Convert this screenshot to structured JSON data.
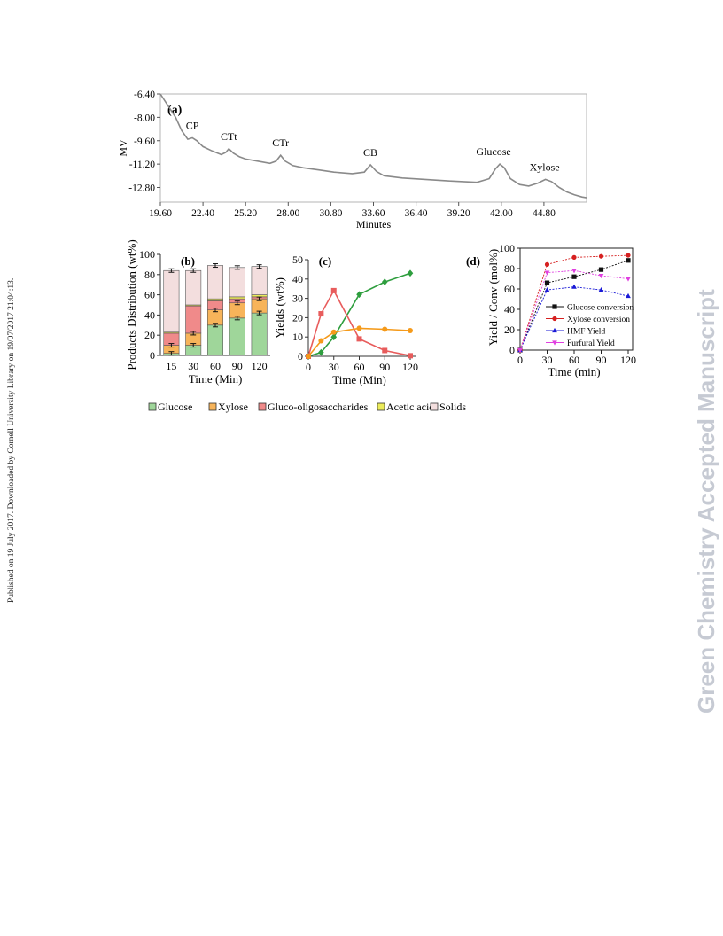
{
  "page": {
    "watermark": "Green Chemistry Accepted Manuscript",
    "sidebar_note": "Published on 19 July 2017. Downloaded by Cornell University Library on 19/07/2017 21:04:13."
  },
  "legend_b": {
    "items": [
      {
        "label": "Glucose",
        "color": "#9fd69a"
      },
      {
        "label": "Xylose",
        "color": "#f7b45a"
      },
      {
        "label": "Gluco-oligosaccharides",
        "color": "#f08a8a"
      },
      {
        "label": "Acetic acid",
        "color": "#ecec5a"
      },
      {
        "label": "Solids",
        "color": "#f3dede"
      }
    ]
  },
  "chart_data": [
    {
      "panel": "(a)",
      "type": "line",
      "xlabel": "Minutes",
      "ylabel": "MV",
      "xlim": [
        19.6,
        47.6
      ],
      "ylim": [
        -13.8,
        -6.4
      ],
      "xticks": [
        "19.60",
        "22.40",
        "25.20",
        "28.00",
        "30.80",
        "33.60",
        "36.40",
        "39.20",
        "42.00",
        "44.80"
      ],
      "yticks": [
        "-6.40",
        "-8.00",
        "-9.60",
        "-11.20",
        "-12.80"
      ],
      "peaks": [
        {
          "label": "CP",
          "x": 21.7
        },
        {
          "label": "CTt",
          "x": 24.1
        },
        {
          "label": "CTr",
          "x": 27.5
        },
        {
          "label": "CB",
          "x": 33.4
        },
        {
          "label": "Glucose",
          "x": 41.9
        },
        {
          "label": "Xylose",
          "x": 44.9
        }
      ],
      "x": [
        19.6,
        20.1,
        20.6,
        21.0,
        21.4,
        21.7,
        22.0,
        22.4,
        23.0,
        23.6,
        23.9,
        24.1,
        24.4,
        24.8,
        25.2,
        26.0,
        26.8,
        27.2,
        27.5,
        27.8,
        28.3,
        29.0,
        30.0,
        31.0,
        32.2,
        33.0,
        33.4,
        33.8,
        34.3,
        35.5,
        37.0,
        38.5,
        39.5,
        40.4,
        41.2,
        41.6,
        41.9,
        42.2,
        42.6,
        43.2,
        43.8,
        44.4,
        44.9,
        45.3,
        45.8,
        46.3,
        46.8,
        47.3,
        47.6
      ],
      "y": [
        -6.4,
        -7.2,
        -8.0,
        -8.9,
        -9.5,
        -9.4,
        -9.6,
        -10.0,
        -10.3,
        -10.55,
        -10.4,
        -10.15,
        -10.45,
        -10.7,
        -10.85,
        -11.0,
        -11.15,
        -11.0,
        -10.6,
        -11.0,
        -11.3,
        -11.45,
        -11.6,
        -11.75,
        -11.85,
        -11.75,
        -11.25,
        -11.7,
        -12.0,
        -12.15,
        -12.25,
        -12.35,
        -12.4,
        -12.45,
        -12.2,
        -11.55,
        -11.2,
        -11.45,
        -12.2,
        -12.6,
        -12.7,
        -12.5,
        -12.25,
        -12.4,
        -12.8,
        -13.1,
        -13.3,
        -13.45,
        -13.5
      ],
      "color": "#8a8a8a"
    },
    {
      "panel": "(b)",
      "type": "bar",
      "stacked": true,
      "xlabel": "Time (Min)",
      "ylabel": "Products Distribution (wt%)",
      "ylim": [
        0,
        100
      ],
      "yticks": [
        0,
        20,
        40,
        60,
        80,
        100
      ],
      "categories": [
        "15",
        "30",
        "60",
        "90",
        "120"
      ],
      "series": [
        {
          "name": "Glucose",
          "values": [
            2,
            10,
            30,
            37,
            42
          ],
          "color": "#9fd69a"
        },
        {
          "name": "Xylose",
          "values": [
            8,
            12,
            15,
            15,
            14
          ],
          "color": "#f7b45a"
        },
        {
          "name": "Gluco-oligosaccharides",
          "values": [
            12,
            27,
            9,
            4,
            2
          ],
          "color": "#f08a8a"
        },
        {
          "name": "Acetic acid",
          "values": [
            1,
            1,
            2,
            2,
            2
          ],
          "color": "#ecec5a"
        },
        {
          "name": "Solids",
          "values": [
            61,
            34,
            33,
            29,
            28
          ],
          "color": "#f3dede"
        }
      ]
    },
    {
      "panel": "(c)",
      "type": "line",
      "xlabel": "Time (Min)",
      "ylabel": "Yields (wt%)",
      "xlim": [
        0,
        120
      ],
      "ylim": [
        0,
        50
      ],
      "xticks": [
        0,
        30,
        60,
        90,
        120
      ],
      "yticks": [
        0,
        10,
        20,
        30,
        40,
        50
      ],
      "series": [
        {
          "name": "Glucose",
          "x": [
            0,
            15,
            30,
            60,
            90,
            120
          ],
          "y": [
            0,
            2,
            10,
            32,
            38.5,
            43
          ],
          "color": "#2e9e3e",
          "marker": "diamond"
        },
        {
          "name": "Gluco-oligosaccharides",
          "x": [
            0,
            15,
            30,
            60,
            90,
            120
          ],
          "y": [
            0,
            22,
            34,
            9,
            3,
            0.3
          ],
          "color": "#e85c5c",
          "marker": "square"
        },
        {
          "name": "Xylose",
          "x": [
            0,
            15,
            30,
            60,
            90,
            120
          ],
          "y": [
            0,
            8,
            12.5,
            14.5,
            14,
            13.3
          ],
          "color": "#f59a1a",
          "marker": "circle"
        }
      ]
    },
    {
      "panel": "(d)",
      "type": "line",
      "xlabel": "Time (min)",
      "ylabel": "Yield / Conv (mol%)",
      "xlim": [
        0,
        120
      ],
      "ylim": [
        0,
        100
      ],
      "xticks": [
        0,
        30,
        60,
        90,
        120
      ],
      "yticks": [
        0,
        20,
        40,
        60,
        80,
        100
      ],
      "series": [
        {
          "name": "Glucose conversion",
          "x": [
            0,
            30,
            60,
            90,
            120
          ],
          "y": [
            0,
            66,
            72,
            79,
            88
          ],
          "color": "#111111",
          "marker": "square"
        },
        {
          "name": "Xylose conversion",
          "x": [
            0,
            30,
            60,
            90,
            120
          ],
          "y": [
            0,
            84,
            91,
            92,
            93
          ],
          "color": "#d62020",
          "marker": "circle"
        },
        {
          "name": "HMF Yield",
          "x": [
            0,
            30,
            60,
            90,
            120
          ],
          "y": [
            0,
            59,
            62,
            59,
            53
          ],
          "color": "#1a1ad6",
          "marker": "triangle-up"
        },
        {
          "name": "Furfural Yield",
          "x": [
            0,
            30,
            60,
            90,
            120
          ],
          "y": [
            0,
            76,
            78,
            73,
            70
          ],
          "color": "#e040e0",
          "marker": "triangle-down"
        }
      ]
    }
  ]
}
